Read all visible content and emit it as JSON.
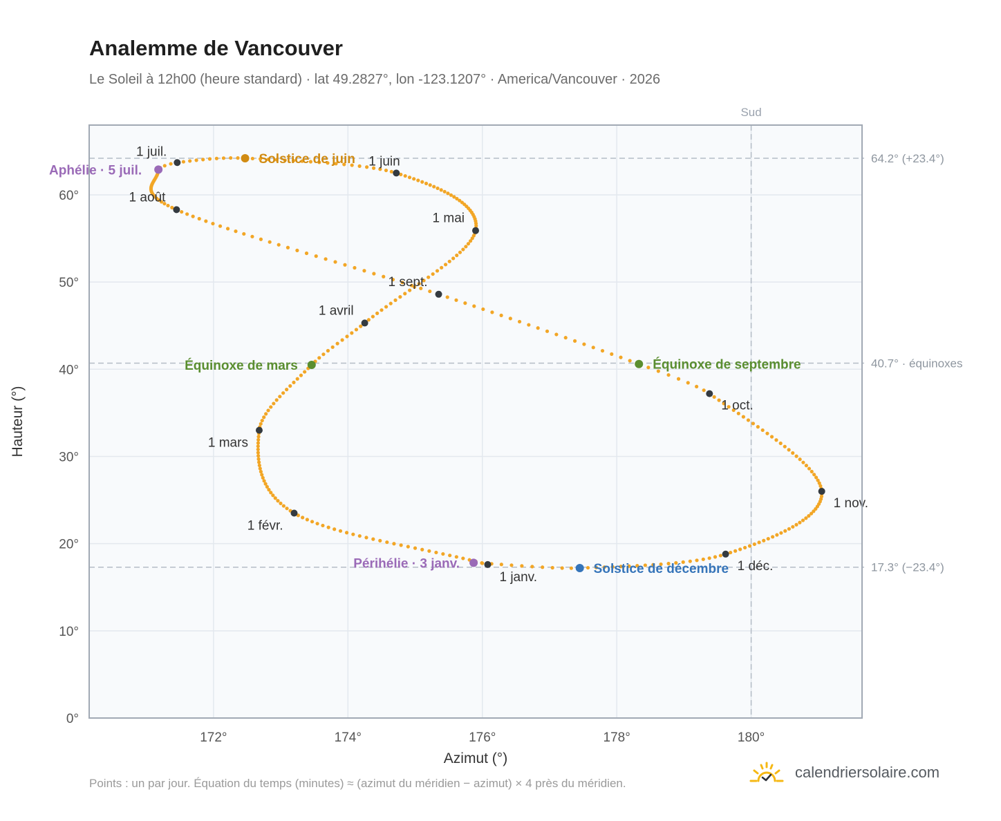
{
  "title": "Analemme de Vancouver",
  "subtitle": "Le Soleil à 12h00 (heure standard) · lat 49.2827°, lon -123.1207° · America/Vancouver · 2026",
  "footnote": "Points : un par jour. Équation du temps (minutes) ≈ (azimut du méridien − azimut) × 4 près du méridien.",
  "brand": "calendriersolaire.com",
  "chart_data": {
    "type": "scatter",
    "xlabel": "Azimut (°)",
    "ylabel": "Hauteur (°)",
    "xlim": [
      170.15,
      181.65
    ],
    "ylim": [
      0,
      68
    ],
    "xticks": [
      172,
      174,
      176,
      178,
      180
    ],
    "xtick_labels": [
      "172°",
      "174°",
      "176°",
      "178°",
      "180°"
    ],
    "yticks": [
      0,
      10,
      20,
      30,
      40,
      50,
      60
    ],
    "ytick_labels": [
      "0°",
      "10°",
      "20°",
      "30°",
      "40°",
      "50°",
      "60°"
    ],
    "grid": true,
    "colors": {
      "curve": "#f2a626",
      "month": "#343a40",
      "solstice_june": "#d18b12",
      "solstice_december": "#3574b9",
      "equinox": "#5a8e30",
      "apsis": "#9a6ab7",
      "reference": "#b4bcc6",
      "plot_bg": "#f8fafc",
      "frame": "#a1a9b4"
    },
    "reference_lines": {
      "south": {
        "x": 180,
        "label": "Sud"
      },
      "horizontal": [
        {
          "y": 64.2,
          "label": "64.2° (+23.4°)"
        },
        {
          "y": 40.7,
          "label": "40.7° · équinoxes"
        },
        {
          "y": 17.3,
          "label": "17.3° (−23.4°)"
        }
      ]
    },
    "anchors": [
      {
        "date": "1 janv.",
        "doy": 0,
        "x": 176.08,
        "y": 17.6
      },
      {
        "date": "1 févr.",
        "doy": 31,
        "x": 173.2,
        "y": 23.5
      },
      {
        "date": "1 mars",
        "doy": 59,
        "x": 172.68,
        "y": 33.0
      },
      {
        "date": "Équinoxe de mars",
        "doy": 78,
        "x": 173.46,
        "y": 40.5
      },
      {
        "date": "1 avril",
        "doy": 90,
        "x": 174.25,
        "y": 45.3
      },
      {
        "date": "1 mai",
        "doy": 120,
        "x": 175.9,
        "y": 55.9
      },
      {
        "date": "1 juin",
        "doy": 151,
        "x": 174.72,
        "y": 62.5
      },
      {
        "date": "Solstice de juin",
        "doy": 171,
        "x": 172.47,
        "y": 64.2
      },
      {
        "date": "1 juil.",
        "doy": 181,
        "x": 171.46,
        "y": 63.7
      },
      {
        "date": "Aphélie · 5 juil.",
        "doy": 185,
        "x": 171.18,
        "y": 62.9
      },
      {
        "date": "1 août",
        "doy": 212,
        "x": 171.45,
        "y": 58.3
      },
      {
        "date": "1 sept.",
        "doy": 243,
        "x": 175.35,
        "y": 48.6
      },
      {
        "date": "Équinoxe de septembre",
        "doy": 265,
        "x": 178.33,
        "y": 40.6
      },
      {
        "date": "1 oct.",
        "doy": 273,
        "x": 179.38,
        "y": 37.2
      },
      {
        "date": "1 nov.",
        "doy": 304,
        "x": 181.05,
        "y": 26.0
      },
      {
        "date": "1 déc.",
        "doy": 334,
        "x": 179.62,
        "y": 18.8
      },
      {
        "date": "Solstice de décembre",
        "doy": 354,
        "x": 177.45,
        "y": 17.2
      },
      {
        "date": "Périhélie · 3 janv.",
        "doy": 365,
        "x": 175.87,
        "y": 17.8
      }
    ],
    "month_markers": [
      {
        "label": "1 janv.",
        "x": 176.08,
        "y": 17.6
      },
      {
        "label": "1 févr.",
        "x": 173.2,
        "y": 23.5
      },
      {
        "label": "1 mars",
        "x": 172.68,
        "y": 33.0
      },
      {
        "label": "1 avril",
        "x": 174.25,
        "y": 45.3
      },
      {
        "label": "1 mai",
        "x": 175.9,
        "y": 55.9
      },
      {
        "label": "1 juin",
        "x": 174.72,
        "y": 62.5
      },
      {
        "label": "1 juil.",
        "x": 171.46,
        "y": 63.7
      },
      {
        "label": "1 août",
        "x": 171.45,
        "y": 58.3
      },
      {
        "label": "1 sept.",
        "x": 175.35,
        "y": 48.6
      },
      {
        "label": "1 oct.",
        "x": 179.38,
        "y": 37.2
      },
      {
        "label": "1 nov.",
        "x": 181.05,
        "y": 26.0
      },
      {
        "label": "1 déc.",
        "x": 179.62,
        "y": 18.8
      }
    ],
    "events": [
      {
        "label": "Solstice de juin",
        "kind": "solstice_june",
        "x": 172.47,
        "y": 64.2
      },
      {
        "label": "Solstice de décembre",
        "kind": "solstice_december",
        "x": 177.45,
        "y": 17.2
      },
      {
        "label": "Équinoxe de mars",
        "kind": "equinox",
        "x": 173.46,
        "y": 40.5
      },
      {
        "label": "Équinoxe de septembre",
        "kind": "equinox",
        "x": 178.33,
        "y": 40.6
      },
      {
        "label": "Aphélie · 5 juil.",
        "kind": "apsis",
        "x": 171.18,
        "y": 62.9
      },
      {
        "label": "Périhélie · 3 janv.",
        "kind": "apsis",
        "x": 175.87,
        "y": 17.8
      }
    ]
  }
}
